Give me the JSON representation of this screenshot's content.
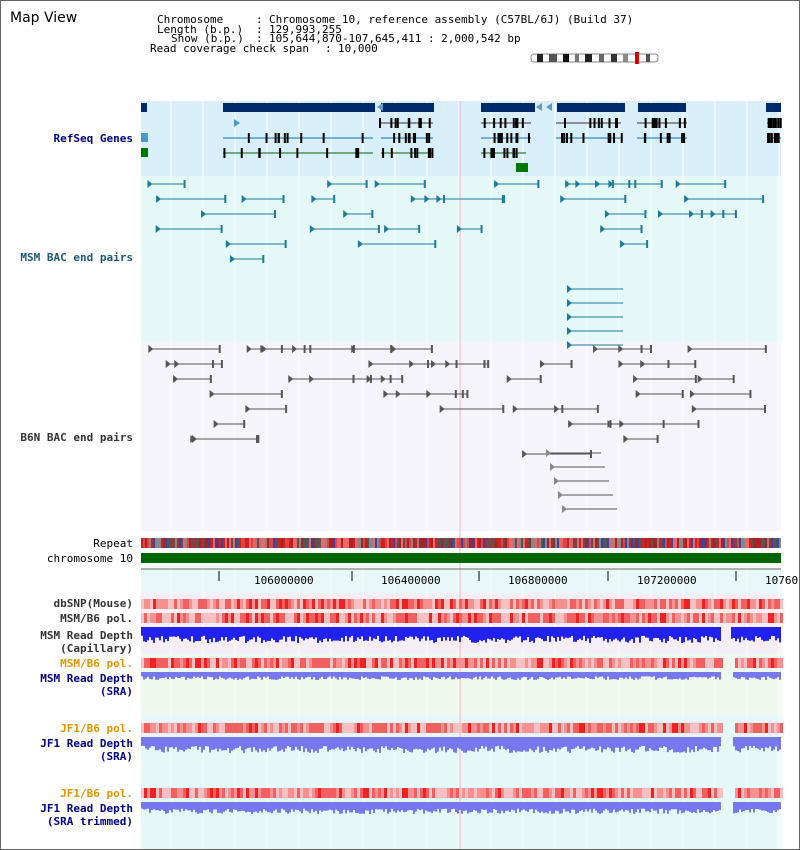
{
  "title": "Map View",
  "info": {
    "chromosome_label": "Chromosome",
    "chromosome_value": "Chromosome 10, reference assembly (C57BL/6J) (Build 37)",
    "length_label": "Length (b.p.)",
    "length_value": "129,993,255",
    "show_label": "Show (b.p.)",
    "show_value": "105,644,870-107,645,411 : 2,000,542 bp",
    "coverage_label": "Read coverage check span",
    "coverage_value": "10,000",
    "sep": ":"
  },
  "tracks": {
    "refseq": "RefSeq Genes",
    "msm_bac": "MSM BAC end pairs",
    "b6n_bac": "B6N BAC end pairs",
    "repeat": "Repeat",
    "chromosome": "chromosome 10",
    "dbsnp": "dbSNP(Mouse)",
    "msm_b6_pol_1": "MSM/B6 pol.",
    "msm_depth_cap_1": "MSM Read Depth",
    "msm_depth_cap_2": "(Capillary)",
    "msm_b6_pol_2": "MSM/B6 pol.",
    "msm_depth_sra_1": "MSM Read Depth",
    "msm_depth_sra_2": "(SRA)",
    "jf1_pol_1": "JF1/B6 pol.",
    "jf1_depth_sra_1": "JF1 Read Depth",
    "jf1_depth_sra_2": "(SRA)",
    "jf1_pol_2": "JF1/B6 pol.",
    "jf1_depth_trim_1": "JF1 Read Depth",
    "jf1_depth_trim_2": "(SRA trimmed)"
  },
  "axis": {
    "ticks": [
      "106000000",
      "106400000",
      "106800000",
      "107200000",
      "10760"
    ]
  },
  "colors": {
    "refseq_label": "#00008b",
    "msm_label": "#1e5a78",
    "b6n_label": "#333333",
    "orange_label": "#e69500",
    "blue_label": "#00008b",
    "gene_fill": "#002a6a",
    "chromosome_bar": "#006400",
    "depth_blue": "#2222ee",
    "depth_light": "#7777ee"
  }
}
